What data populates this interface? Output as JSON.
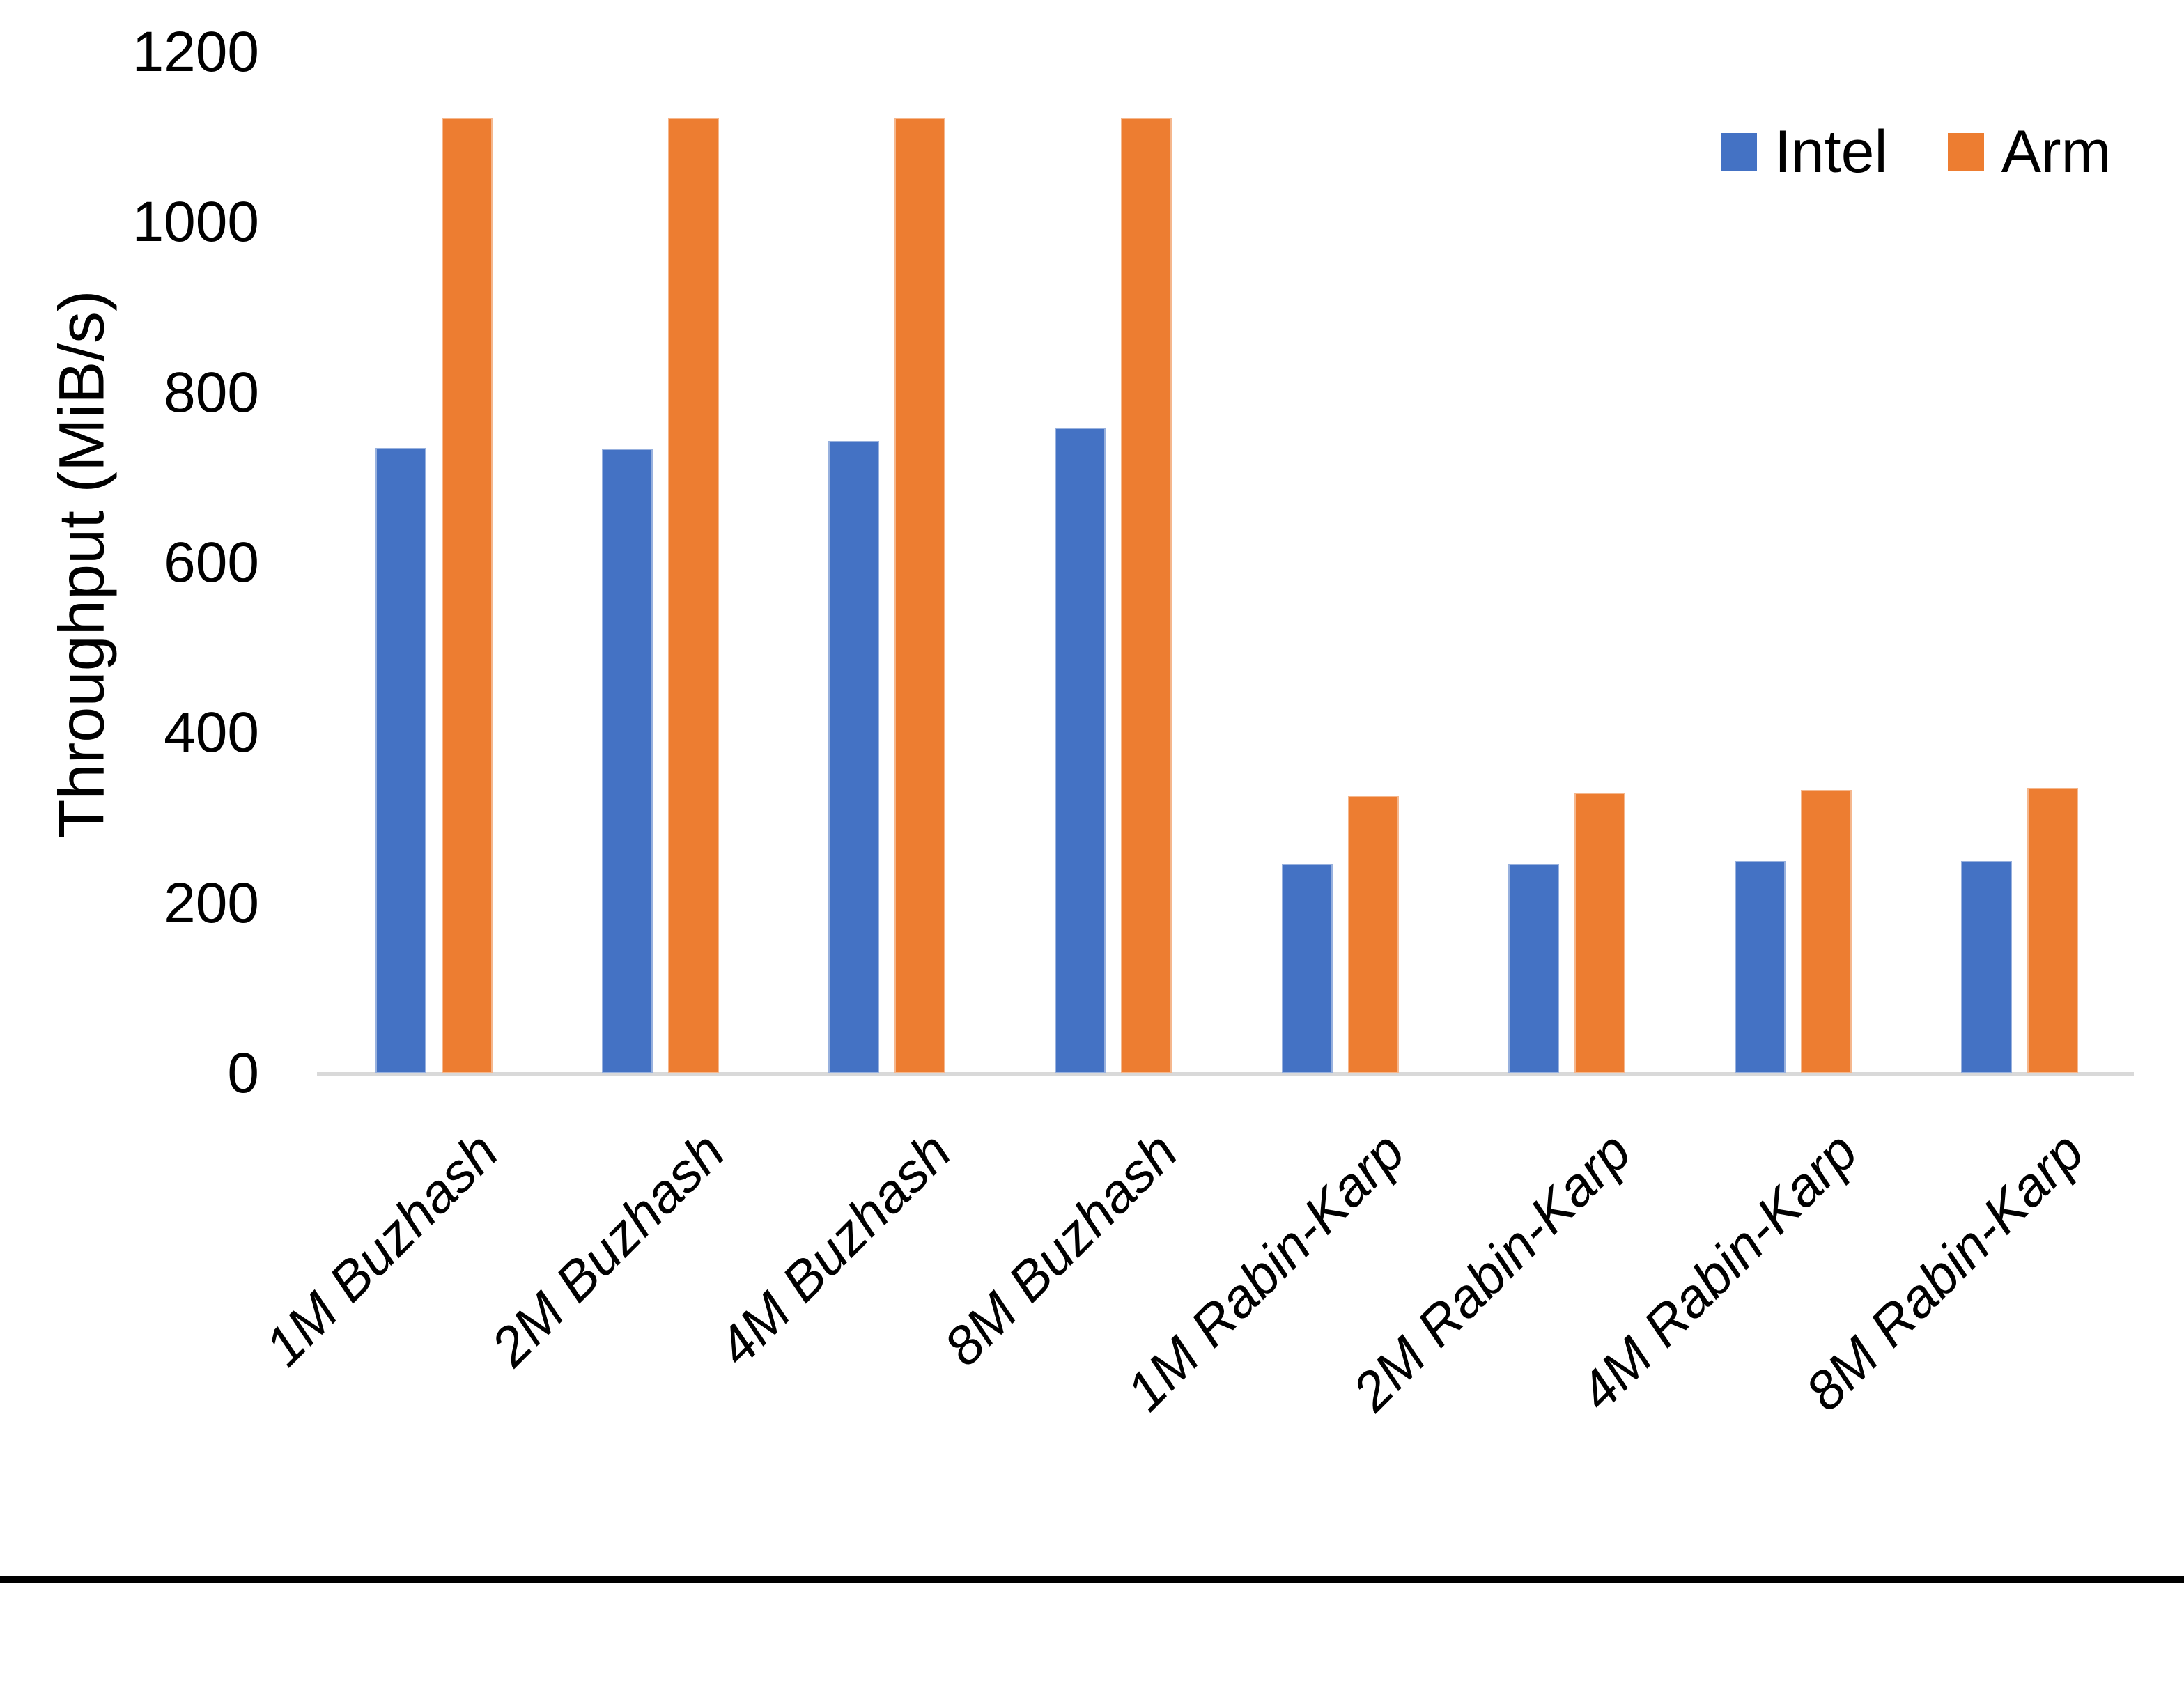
{
  "chart_data": {
    "type": "bar",
    "title": "",
    "xlabel": "",
    "ylabel": "Throughput (MiB/s)",
    "categories": [
      "1M Buzhash",
      "2M Buzhash",
      "4M Buzhash",
      "8M Buzhash",
      "1M Rabin-Karp",
      "2M Rabin-Karp",
      "4M Rabin-Karp",
      "8M Rabin-Karp"
    ],
    "series": [
      {
        "name": "Intel",
        "color": "#4472C4",
        "values": [
          735,
          734,
          743,
          759,
          246,
          246,
          250,
          250
        ]
      },
      {
        "name": "Arm",
        "color": "#ED7D31",
        "values": [
          1123,
          1123,
          1123,
          1123,
          327,
          330,
          333,
          336
        ]
      }
    ],
    "ylim": [
      0,
      1200
    ],
    "ytick_step": 200,
    "yticks": [
      "0",
      "200",
      "400",
      "600",
      "800",
      "1000",
      "1200"
    ],
    "grid": false,
    "legend_position": "top-right",
    "x_label_rotation_deg": 45,
    "x_label_style": "italic",
    "axis_line_color": "#D9D9D9",
    "text_color": "#000000",
    "background_color": "#FFFFFF",
    "bottom_bar_color": "#000000"
  }
}
